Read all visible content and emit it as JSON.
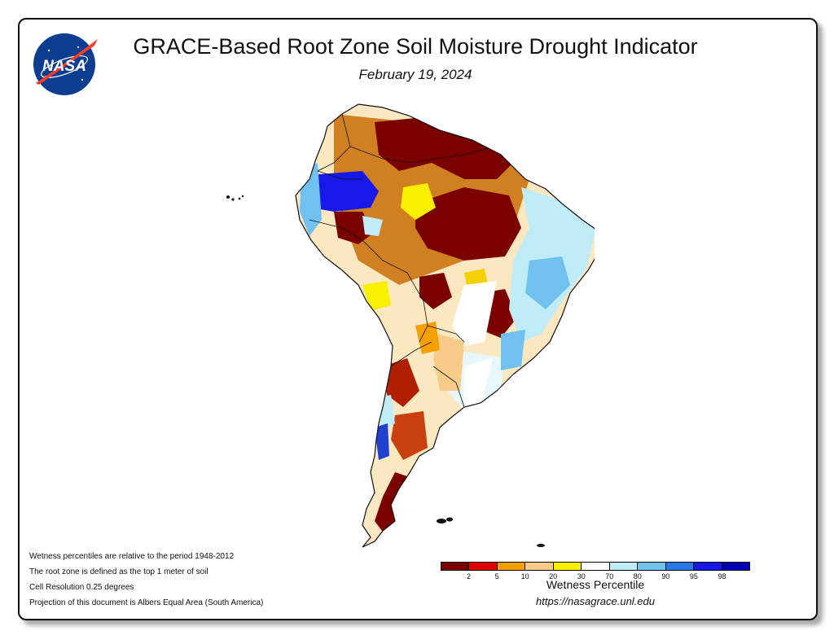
{
  "header": {
    "logo_text": "NASA",
    "title": "GRACE-Based Root Zone Soil Moisture Drought Indicator",
    "date": "February 19, 2024"
  },
  "notes": [
    "Wetness percentiles are relative to the period 1948-2012",
    "The root zone is defined as the top 1 meter of soil",
    "Cell Resolution 0.25 degrees",
    "Projection of this document is Albers Equal Area (South America)"
  ],
  "legend": {
    "title": "Wetness Percentile",
    "colors": [
      "#7b0000",
      "#e00000",
      "#f5a000",
      "#f8cc88",
      "#f8f000",
      "#ffffff",
      "#c0ecf8",
      "#70c0f0",
      "#2878e8",
      "#1818e8",
      "#0000b0"
    ],
    "ticks": [
      "2",
      "5",
      "10",
      "20",
      "30",
      "70",
      "80",
      "90",
      "95",
      "98"
    ]
  },
  "footer": {
    "url": "https://nasagrace.unl.edu"
  },
  "map": {
    "region": "South America"
  }
}
